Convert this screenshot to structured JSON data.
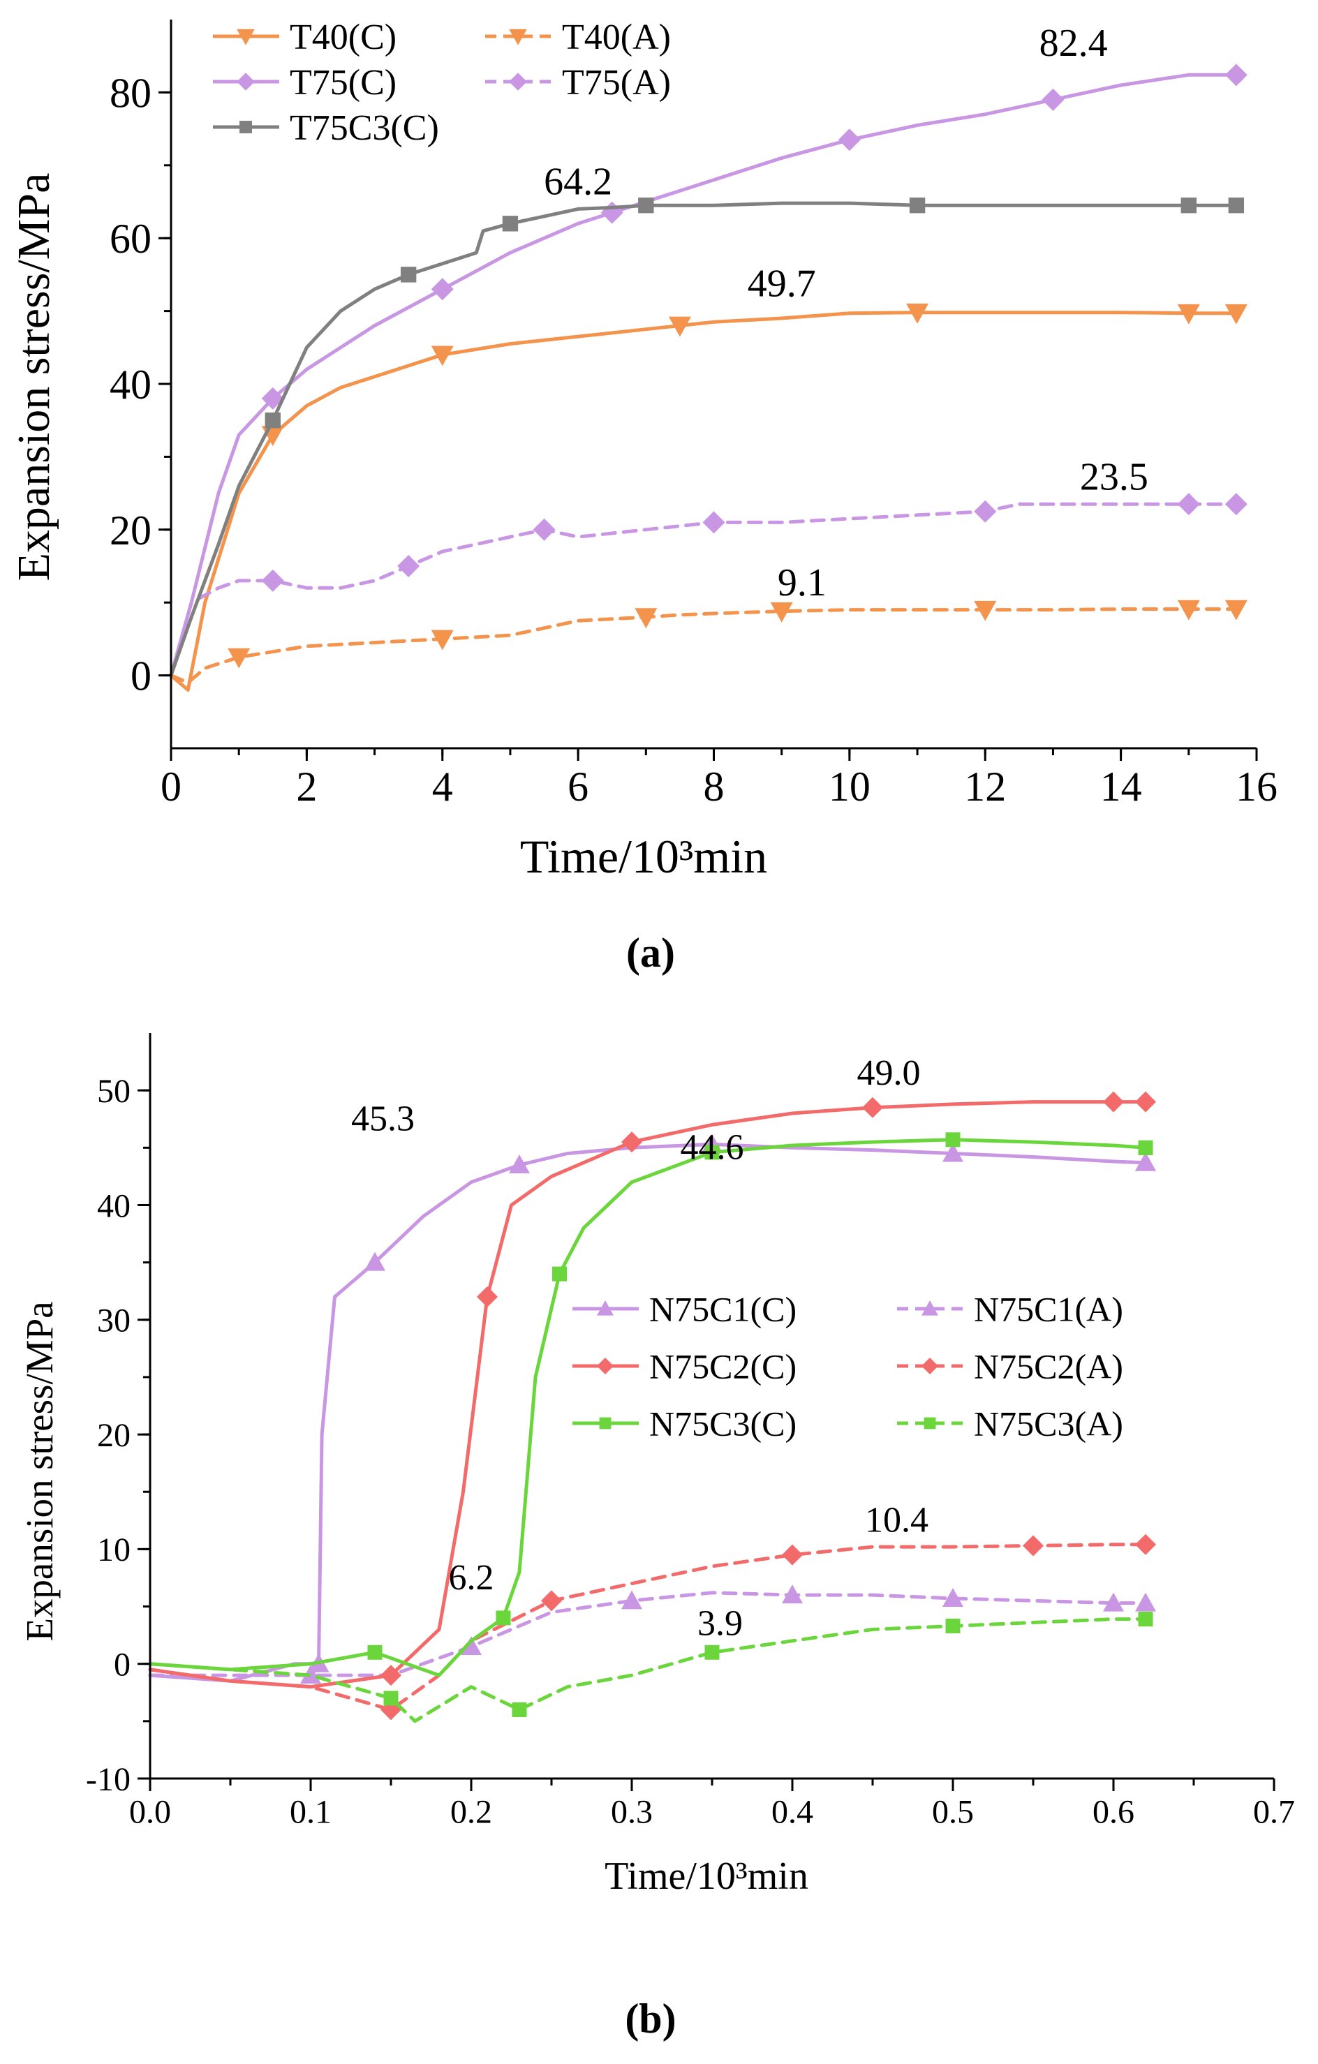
{
  "chart_data": [
    {
      "type": "line",
      "caption": "(a)",
      "xlabel": "Time/10³min",
      "ylabel": "Expansion stress/MPa",
      "xlim": [
        0,
        16
      ],
      "ylim": [
        -10,
        90
      ],
      "xticks": [
        "0",
        "2",
        "4",
        "6",
        "8",
        "10",
        "12",
        "14",
        "16"
      ],
      "yticks": [
        "0",
        "20",
        "40",
        "60",
        "80"
      ],
      "legend_position": "top-left",
      "series": [
        {
          "name": "T40(C)",
          "color": "#f4934b",
          "dash": false,
          "marker": "triangle-down",
          "x": [
            0,
            0.25,
            0.5,
            1,
            1.5,
            2,
            2.5,
            3,
            4,
            5,
            6,
            7,
            7.5,
            8,
            9,
            10,
            11,
            12,
            13,
            14,
            15,
            15.7
          ],
          "y": [
            0,
            -2,
            10,
            25,
            33,
            37,
            39.5,
            41,
            44,
            45.5,
            46.5,
            47.5,
            48,
            48.5,
            49,
            49.7,
            49.8,
            49.8,
            49.8,
            49.8,
            49.7,
            49.7
          ]
        },
        {
          "name": "T40(A)",
          "color": "#f4934b",
          "dash": true,
          "marker": "triangle-down",
          "x": [
            0,
            0.25,
            0.5,
            1,
            2,
            3,
            4,
            5,
            6,
            7,
            7.5,
            8,
            9,
            10,
            11,
            12,
            13,
            14,
            15,
            15.7
          ],
          "y": [
            0,
            -1,
            1,
            2.5,
            4,
            4.5,
            5,
            5.5,
            7.5,
            8,
            8.3,
            8.5,
            8.8,
            9,
            9,
            9,
            9,
            9.1,
            9.1,
            9.1
          ]
        },
        {
          "name": "T75(C)",
          "color": "#c896e3",
          "dash": false,
          "marker": "diamond",
          "x": [
            0,
            0.3,
            0.7,
            1,
            1.5,
            2,
            2.5,
            3,
            4,
            5,
            5.5,
            6,
            6.5,
            7,
            8,
            9,
            10,
            11,
            12,
            12.5,
            13,
            14,
            15,
            15.7
          ],
          "y": [
            0,
            10,
            25,
            33,
            38,
            42,
            45,
            48,
            53,
            58,
            60,
            62,
            63.5,
            65,
            68,
            71,
            73.5,
            75.5,
            77,
            78,
            79,
            81,
            82.4,
            82.4
          ]
        },
        {
          "name": "T75(A)",
          "color": "#c896e3",
          "dash": true,
          "marker": "diamond",
          "x": [
            0,
            0.3,
            0.7,
            1,
            1.5,
            2,
            2.5,
            3,
            3.5,
            4,
            4.5,
            5,
            5.5,
            6,
            7,
            7.5,
            8,
            9,
            10,
            11,
            12,
            12.5,
            13,
            14,
            15,
            15.7
          ],
          "y": [
            0,
            10,
            12,
            13,
            13,
            12,
            12,
            13,
            15,
            17,
            18,
            19,
            20,
            19,
            20,
            20.5,
            21,
            21,
            21.5,
            22,
            22.5,
            23.5,
            23.5,
            23.5,
            23.5,
            23.5
          ]
        },
        {
          "name": "T75C3(C)",
          "color": "#808080",
          "dash": false,
          "marker": "square",
          "x": [
            0,
            0.3,
            0.7,
            1,
            1.5,
            2,
            2.5,
            3,
            3.5,
            4,
            4.5,
            4.6,
            5,
            5.5,
            6,
            6.5,
            7,
            8,
            9,
            10,
            11,
            12,
            13,
            14,
            15,
            15.7
          ],
          "y": [
            0,
            8,
            18,
            26,
            35,
            45,
            50,
            53,
            55,
            56.5,
            58,
            61,
            62,
            63,
            64,
            64.2,
            64.5,
            64.5,
            64.8,
            64.8,
            64.5,
            64.5,
            64.5,
            64.5,
            64.5,
            64.5
          ]
        }
      ],
      "annotations": [
        {
          "text": "82.4",
          "x": 13.3,
          "y": 85
        },
        {
          "text": "64.2",
          "x": 6.0,
          "y": 66
        },
        {
          "text": "49.7",
          "x": 9.0,
          "y": 52
        },
        {
          "text": "23.5",
          "x": 13.9,
          "y": 25.5
        },
        {
          "text": "9.1",
          "x": 9.3,
          "y": 11
        }
      ]
    },
    {
      "type": "line",
      "caption": "(b)",
      "xlabel": "Time/10³min",
      "ylabel": "Expansion stress/MPa",
      "xlim": [
        0,
        0.7
      ],
      "ylim": [
        -10,
        55
      ],
      "xticks": [
        "0.0",
        "0.1",
        "0.2",
        "0.3",
        "0.4",
        "0.5",
        "0.6",
        "0.7"
      ],
      "yticks": [
        "-10",
        "0",
        "10",
        "20",
        "30",
        "40",
        "50"
      ],
      "legend_position": "center-right",
      "series": [
        {
          "name": "N75C1(C)",
          "color": "#c896e3",
          "dash": false,
          "marker": "triangle-up",
          "x": [
            0,
            0.05,
            0.09,
            0.105,
            0.107,
            0.115,
            0.14,
            0.17,
            0.2,
            0.23,
            0.26,
            0.3,
            0.35,
            0.4,
            0.45,
            0.5,
            0.55,
            0.6,
            0.62
          ],
          "y": [
            -1,
            -1.5,
            0,
            0,
            20,
            32,
            35,
            39,
            42,
            43.5,
            44.5,
            45,
            45.3,
            45,
            44.8,
            44.5,
            44.2,
            43.8,
            43.7
          ]
        },
        {
          "name": "N75C1(A)",
          "color": "#c896e3",
          "dash": true,
          "marker": "triangle-up",
          "x": [
            0,
            0.05,
            0.1,
            0.15,
            0.2,
            0.25,
            0.3,
            0.35,
            0.4,
            0.45,
            0.5,
            0.55,
            0.6,
            0.62
          ],
          "y": [
            -1,
            -1,
            -1,
            -1,
            1.5,
            4.5,
            5.5,
            6.2,
            6,
            6,
            5.7,
            5.5,
            5.3,
            5.3
          ]
        },
        {
          "name": "N75C2(C)",
          "color": "#f26a6a",
          "dash": false,
          "marker": "diamond",
          "x": [
            0,
            0.05,
            0.1,
            0.15,
            0.18,
            0.195,
            0.21,
            0.225,
            0.25,
            0.3,
            0.35,
            0.4,
            0.45,
            0.5,
            0.55,
            0.6,
            0.62
          ],
          "y": [
            -0.5,
            -1.5,
            -2,
            -1,
            3,
            15,
            32,
            40,
            42.5,
            45.5,
            47,
            48,
            48.5,
            48.8,
            49,
            49,
            49
          ]
        },
        {
          "name": "N75C2(A)",
          "color": "#f26a6a",
          "dash": true,
          "marker": "diamond",
          "x": [
            0,
            0.05,
            0.1,
            0.15,
            0.18,
            0.2,
            0.25,
            0.3,
            0.35,
            0.4,
            0.45,
            0.5,
            0.55,
            0.6,
            0.62
          ],
          "y": [
            -0.5,
            -1.5,
            -2,
            -4,
            -1,
            2,
            5.5,
            7,
            8.5,
            9.5,
            10.2,
            10.2,
            10.3,
            10.4,
            10.4
          ]
        },
        {
          "name": "N75C3(C)",
          "color": "#6ad63c",
          "dash": false,
          "marker": "square",
          "x": [
            0,
            0.05,
            0.1,
            0.14,
            0.18,
            0.2,
            0.22,
            0.23,
            0.24,
            0.255,
            0.27,
            0.3,
            0.35,
            0.4,
            0.45,
            0.5,
            0.55,
            0.6,
            0.62
          ],
          "y": [
            0,
            -0.5,
            0,
            1,
            -1,
            2,
            4,
            8,
            25,
            34,
            38,
            42,
            44.6,
            45.2,
            45.5,
            45.7,
            45.5,
            45.2,
            45
          ]
        },
        {
          "name": "N75C3(A)",
          "color": "#6ad63c",
          "dash": true,
          "marker": "square",
          "x": [
            0,
            0.05,
            0.1,
            0.15,
            0.165,
            0.2,
            0.23,
            0.26,
            0.3,
            0.35,
            0.4,
            0.45,
            0.5,
            0.55,
            0.6,
            0.62
          ],
          "y": [
            0,
            -0.5,
            -1,
            -3,
            -5,
            -2,
            -4,
            -2,
            -1,
            1,
            2,
            3,
            3.3,
            3.6,
            3.9,
            3.9
          ]
        }
      ],
      "annotations": [
        {
          "text": "45.3",
          "x": 0.145,
          "y": 46.5
        },
        {
          "text": "49.0",
          "x": 0.46,
          "y": 50.5
        },
        {
          "text": "44.6",
          "x": 0.35,
          "y": 44
        },
        {
          "text": "10.4",
          "x": 0.465,
          "y": 11.5
        },
        {
          "text": "6.2",
          "x": 0.2,
          "y": 6.5
        },
        {
          "text": "3.9",
          "x": 0.355,
          "y": 2.5
        }
      ]
    }
  ]
}
